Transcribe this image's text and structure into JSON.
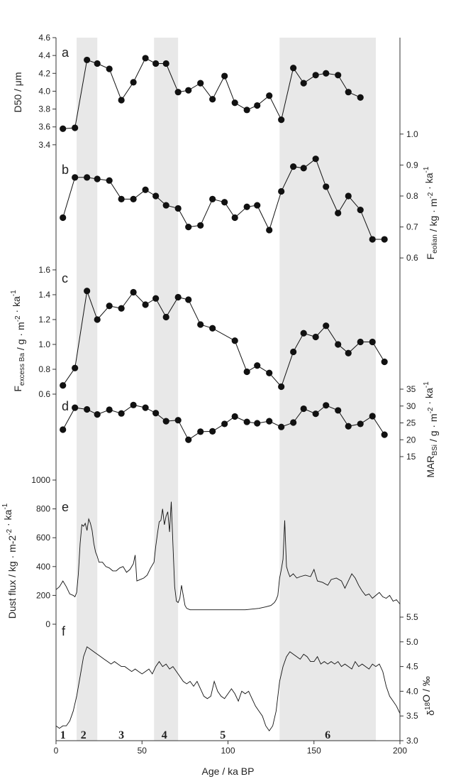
{
  "figure": {
    "x_axis": {
      "label": "Age / ka BP",
      "range": [
        0,
        200
      ],
      "ticks": [
        0,
        50,
        100,
        150,
        200
      ]
    },
    "mis_stages": [
      {
        "label": "1",
        "age": 4
      },
      {
        "label": "2",
        "age": 16
      },
      {
        "label": "3",
        "age": 38
      },
      {
        "label": "4",
        "age": 63
      },
      {
        "label": "5",
        "age": 97
      },
      {
        "label": "6",
        "age": 158
      }
    ],
    "shaded_intervals": [
      [
        12,
        24
      ],
      [
        57,
        71
      ],
      [
        130,
        186
      ]
    ]
  },
  "chart_data": [
    {
      "type": "line",
      "panel": "a",
      "ylabel": "D50 / μm",
      "y_side": "left",
      "ylim": [
        3.2,
        4.6
      ],
      "yticks": [
        "3.4",
        "3.6",
        "3.8",
        "4.0",
        "4.2",
        "4.4",
        "4.6"
      ],
      "x": [
        4,
        11,
        18,
        24,
        31,
        38,
        45,
        52,
        58,
        64,
        71,
        77,
        84,
        91,
        98,
        104,
        111,
        117,
        124,
        131,
        138,
        144,
        151,
        157,
        164,
        170,
        177
      ],
      "y": [
        3.58,
        3.59,
        4.35,
        4.31,
        4.25,
        3.9,
        4.1,
        4.37,
        4.31,
        4.31,
        3.99,
        4.01,
        4.09,
        3.91,
        4.17,
        3.87,
        3.79,
        3.84,
        3.95,
        3.68,
        4.26,
        4.09,
        4.18,
        4.2,
        4.18,
        3.99,
        3.93
      ]
    },
    {
      "type": "line",
      "panel": "b",
      "ylabel": "Feolian / kg · m-2 · ka-1",
      "ylabel_parts": {
        "main": "F",
        "sub": "eolian",
        "units": " / kg · m",
        "sup1": "-2",
        "units2": " · ka",
        "sup2": "-1"
      },
      "y_side": "right",
      "ylim": [
        0.55,
        1.05
      ],
      "yticks": [
        "0.6",
        "0.7",
        "0.8",
        "0.9",
        "1.0"
      ],
      "x": [
        4,
        11,
        18,
        24,
        31,
        38,
        45,
        52,
        58,
        64,
        71,
        77,
        84,
        91,
        98,
        104,
        111,
        117,
        124,
        131,
        138,
        144,
        151,
        157,
        164,
        170,
        177,
        184,
        191
      ],
      "y": [
        0.73,
        0.86,
        0.86,
        0.855,
        0.85,
        0.79,
        0.79,
        0.82,
        0.8,
        0.77,
        0.76,
        0.7,
        0.705,
        0.79,
        0.78,
        0.73,
        0.765,
        0.77,
        0.69,
        0.815,
        0.895,
        0.89,
        0.92,
        0.83,
        0.745,
        0.8,
        0.755,
        0.66,
        0.66
      ]
    },
    {
      "type": "line",
      "panel": "c",
      "ylabel": "Fexcess Ba / g · m-2 · ka-1",
      "ylabel_parts": {
        "main": "F",
        "sub": "excess Ba",
        "units": " / g · m",
        "sup1": "-2",
        "units2": " · ka",
        "sup2": "-1"
      },
      "y_side": "left",
      "ylim": [
        0.6,
        1.6
      ],
      "yticks": [
        "0.6",
        "0.8",
        "1.0",
        "1.2",
        "1.4",
        "1.6"
      ],
      "x": [
        4,
        11,
        18,
        24,
        31,
        38,
        45,
        52,
        58,
        64,
        71,
        77,
        84,
        91,
        104,
        111,
        117,
        124,
        131,
        138,
        144,
        151,
        157,
        164,
        170,
        177,
        184,
        191
      ],
      "y": [
        0.67,
        0.81,
        1.43,
        1.2,
        1.31,
        1.29,
        1.42,
        1.32,
        1.37,
        1.22,
        1.38,
        1.36,
        1.16,
        1.13,
        1.03,
        0.78,
        0.83,
        0.77,
        0.66,
        0.94,
        1.09,
        1.06,
        1.15,
        1.0,
        0.93,
        1.02,
        1.02,
        0.86
      ]
    },
    {
      "type": "line",
      "panel": "d",
      "ylabel": "MARBSi / g · m-2 · ka-1",
      "ylabel_parts": {
        "main": "MAR",
        "sub": "BSi",
        "units": " / g · m",
        "sup1": "-2",
        "units2": " · ka",
        "sup2": "-1"
      },
      "y_side": "right",
      "ylim": [
        15,
        35
      ],
      "yticks": [
        "15",
        "20",
        "25",
        "30",
        "35"
      ],
      "x": [
        4,
        11,
        18,
        24,
        31,
        38,
        45,
        52,
        58,
        64,
        71,
        77,
        84,
        91,
        98,
        104,
        111,
        117,
        124,
        131,
        138,
        144,
        151,
        157,
        164,
        170,
        177,
        184,
        191
      ],
      "y": [
        23,
        29.5,
        29,
        27.5,
        28.9,
        27.8,
        30.3,
        29.5,
        27.9,
        25.5,
        25.8,
        20,
        22.4,
        22.5,
        24.7,
        26.9,
        25.3,
        24.9,
        25.5,
        23.8,
        25.1,
        29.2,
        27.7,
        30.2,
        28.7,
        24,
        24.7,
        27,
        21.5
      ]
    },
    {
      "type": "line",
      "panel": "e",
      "ylabel": "Dust flux / kg · m-2 -2 · ka-1",
      "ylabel_parts": {
        "main": "Dust flux / kg · m-2",
        "sup1": "-2",
        "units2": " · ka",
        "sup2": "-1"
      },
      "y_side": "left",
      "ylim": [
        0,
        1000
      ],
      "yticks": [
        "0",
        "200",
        "400",
        "600",
        "800",
        "1000"
      ],
      "x": [
        0,
        2,
        4,
        6,
        8,
        10,
        11,
        12,
        13,
        14,
        15,
        16,
        17,
        18,
        19,
        20,
        21,
        22,
        23,
        24,
        25,
        27,
        29,
        31,
        33,
        35,
        37,
        39,
        41,
        43,
        45,
        46,
        47,
        49,
        51,
        53,
        55,
        57,
        58,
        59,
        60,
        61,
        62,
        63,
        64,
        65,
        66,
        67,
        68,
        69,
        70,
        71,
        72,
        73,
        74,
        75,
        76,
        78,
        80,
        85,
        90,
        100,
        110,
        118,
        122,
        125,
        127,
        128,
        129,
        130,
        131,
        132,
        133,
        134,
        135,
        136,
        138,
        140,
        142,
        145,
        148,
        150,
        152,
        155,
        158,
        160,
        163,
        166,
        168,
        170,
        172,
        174,
        176,
        178,
        180,
        182,
        184,
        186,
        188,
        190,
        192,
        194,
        196,
        198,
        200
      ],
      "y": [
        240,
        260,
        300,
        260,
        210,
        200,
        190,
        220,
        350,
        560,
        690,
        680,
        700,
        650,
        730,
        700,
        650,
        560,
        500,
        470,
        430,
        430,
        400,
        390,
        370,
        370,
        390,
        400,
        360,
        380,
        420,
        480,
        300,
        310,
        320,
        340,
        390,
        430,
        540,
        630,
        710,
        720,
        800,
        690,
        750,
        780,
        640,
        850,
        550,
        260,
        160,
        150,
        180,
        270,
        200,
        130,
        110,
        100,
        100,
        100,
        100,
        100,
        100,
        110,
        120,
        130,
        150,
        170,
        200,
        320,
        380,
        450,
        720,
        400,
        360,
        330,
        350,
        320,
        330,
        340,
        330,
        380,
        300,
        290,
        270,
        310,
        320,
        300,
        250,
        300,
        350,
        320,
        270,
        230,
        200,
        210,
        180,
        200,
        220,
        190,
        180,
        200,
        160,
        170,
        140
      ]
    },
    {
      "type": "line",
      "panel": "f",
      "ylabel": "δ18O / ‰",
      "ylabel_parts": {
        "main": "δ",
        "sup1": "18",
        "units2": "O / ‰"
      },
      "y_side": "right",
      "ylim": [
        3.0,
        5.5
      ],
      "yticks": [
        "3.0",
        "3.5",
        "4.0",
        "4.5",
        "5.0",
        "5.5"
      ],
      "x": [
        0,
        2,
        4,
        6,
        8,
        10,
        12,
        14,
        16,
        18,
        20,
        22,
        24,
        26,
        28,
        30,
        32,
        34,
        36,
        38,
        40,
        42,
        44,
        46,
        48,
        50,
        52,
        54,
        56,
        58,
        60,
        62,
        64,
        66,
        68,
        70,
        72,
        74,
        76,
        78,
        80,
        82,
        84,
        86,
        88,
        90,
        92,
        94,
        96,
        98,
        100,
        102,
        104,
        106,
        108,
        110,
        112,
        114,
        116,
        118,
        120,
        122,
        124,
        126,
        128,
        130,
        132,
        134,
        136,
        138,
        140,
        142,
        144,
        146,
        148,
        150,
        152,
        154,
        156,
        158,
        160,
        162,
        164,
        166,
        168,
        170,
        172,
        174,
        176,
        178,
        180,
        182,
        184,
        186,
        188,
        190,
        192,
        194,
        196,
        198,
        200
      ],
      "y": [
        3.3,
        3.25,
        3.3,
        3.3,
        3.4,
        3.6,
        3.9,
        4.3,
        4.7,
        4.9,
        4.85,
        4.8,
        4.75,
        4.7,
        4.65,
        4.6,
        4.55,
        4.6,
        4.55,
        4.5,
        4.5,
        4.45,
        4.4,
        4.45,
        4.4,
        4.35,
        4.4,
        4.45,
        4.35,
        4.5,
        4.6,
        4.5,
        4.55,
        4.45,
        4.5,
        4.4,
        4.3,
        4.2,
        4.15,
        4.2,
        4.1,
        4.2,
        4.05,
        3.9,
        3.85,
        3.9,
        4.2,
        4.0,
        3.9,
        3.85,
        3.95,
        4.05,
        3.95,
        3.8,
        4.0,
        3.95,
        4.0,
        3.85,
        3.7,
        3.6,
        3.5,
        3.3,
        3.2,
        3.3,
        3.6,
        4.2,
        4.5,
        4.7,
        4.8,
        4.75,
        4.7,
        4.65,
        4.75,
        4.7,
        4.6,
        4.6,
        4.7,
        4.55,
        4.6,
        4.55,
        4.6,
        4.55,
        4.6,
        4.5,
        4.55,
        4.5,
        4.45,
        4.6,
        4.5,
        4.55,
        4.5,
        4.45,
        4.55,
        4.5,
        4.55,
        4.4,
        4.1,
        3.9,
        3.8,
        3.7,
        3.55
      ]
    }
  ]
}
